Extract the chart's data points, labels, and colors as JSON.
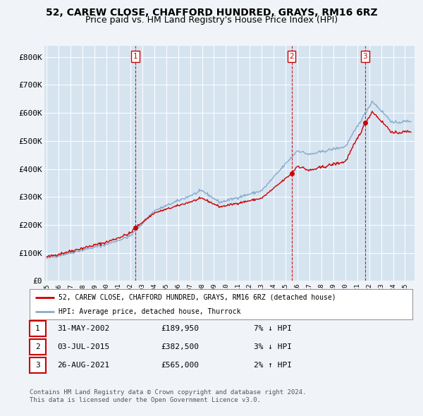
{
  "title": "52, CAREW CLOSE, CHAFFORD HUNDRED, GRAYS, RM16 6RZ",
  "subtitle": "Price paid vs. HM Land Registry's House Price Index (HPI)",
  "background_color": "#f0f4f8",
  "plot_bg_color": "#d6e4f0",
  "ylabel_ticks": [
    "£0",
    "£100K",
    "£200K",
    "£300K",
    "£400K",
    "£500K",
    "£600K",
    "£700K",
    "£800K"
  ],
  "ytick_values": [
    0,
    100000,
    200000,
    300000,
    400000,
    500000,
    600000,
    700000,
    800000
  ],
  "ylim": [
    0,
    840000
  ],
  "xlim_start": 1994.8,
  "xlim_end": 2025.8,
  "purchases": [
    {
      "num": 1,
      "date": "31-MAY-2002",
      "price": 189950,
      "x": 2002.42,
      "hpi_note": "7% ↓ HPI"
    },
    {
      "num": 2,
      "date": "03-JUL-2015",
      "price": 382500,
      "x": 2015.5,
      "hpi_note": "3% ↓ HPI"
    },
    {
      "num": 3,
      "date": "26-AUG-2021",
      "price": 565000,
      "x": 2021.65,
      "hpi_note": "2% ↑ HPI"
    }
  ],
  "legend_red_label": "52, CAREW CLOSE, CHAFFORD HUNDRED, GRAYS, RM16 6RZ (detached house)",
  "legend_blue_label": "HPI: Average price, detached house, Thurrock",
  "footer1": "Contains HM Land Registry data © Crown copyright and database right 2024.",
  "footer2": "This data is licensed under the Open Government Licence v3.0.",
  "red_color": "#cc0000",
  "blue_color": "#88aacc",
  "dashed_color": "#cc0000",
  "title_fontsize": 10,
  "subtitle_fontsize": 9
}
